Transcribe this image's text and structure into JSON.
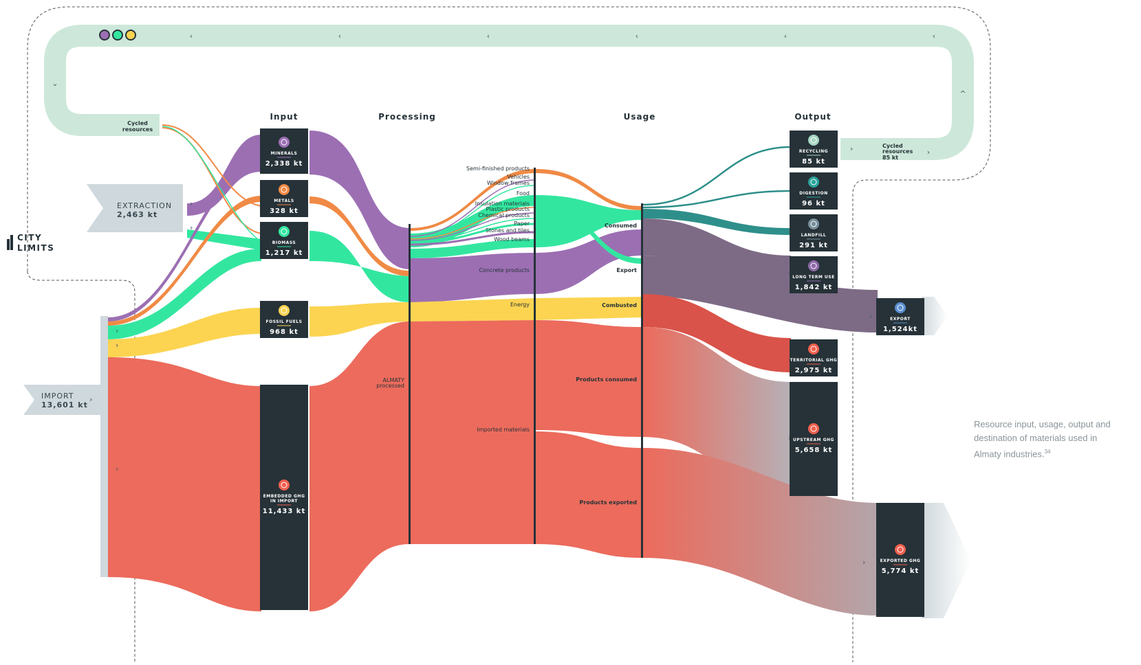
{
  "headers": {
    "input": "Input",
    "processing": "Processing",
    "usage": "Usage",
    "output": "Output"
  },
  "logo": {
    "line1": "CITY",
    "line2": "LIMITS"
  },
  "cycle": {
    "left_label": "Cycled\nresources",
    "right_label": "Cycled\nresources",
    "right_value": "85 kt"
  },
  "sources": {
    "extraction": {
      "label": "EXTRACTION",
      "value": "2,463 kt"
    },
    "import": {
      "label": "IMPORT",
      "value": "13,601 kt"
    }
  },
  "input_nodes": [
    {
      "label": "MINERALS",
      "value": "2,338 kt",
      "icon": "minerals-icon",
      "color": "#9c6fb3"
    },
    {
      "label": "METALS",
      "value": "328 kt",
      "icon": "metals-icon",
      "color": "#f08a45"
    },
    {
      "label": "BIOMASS",
      "value": "1,217 kt",
      "icon": "biomass-icon",
      "color": "#33e6a0"
    },
    {
      "label": "FOSSIL FUELS",
      "value": "968 kt",
      "icon": "fossil-fuels-icon",
      "color": "#fcd451"
    },
    {
      "label": "EMBEDDED GHG\nIN IMPORT",
      "value": "11,433 kt",
      "icon": "ghg-icon",
      "color": "#f0604e"
    }
  ],
  "processing_labels": [
    "Semi-finished products",
    "Vehicles",
    "Window frames",
    "Food",
    "Insulation materials",
    "Plastic products",
    "Chemical products",
    "Paper",
    "Stones and tiles",
    "Wood beams",
    "Concrete products",
    "Energy",
    "Imported materials"
  ],
  "almaty_label": "ALMATY\nprocessed",
  "usage_labels": [
    "Consumed",
    "Export",
    "Combusted",
    "Products consumed",
    "Products exported"
  ],
  "output_nodes": [
    {
      "label": "RECYCLING",
      "value": "85 kt",
      "icon": "recycling-icon",
      "color": "#a5d6c2"
    },
    {
      "label": "DIGESTION",
      "value": "96 kt",
      "icon": "digestion-icon",
      "color": "#2aa39b"
    },
    {
      "label": "LANDFILL",
      "value": "291 kt",
      "icon": "landfill-icon",
      "color": "#78909c"
    },
    {
      "label": "LONG TERM USE",
      "value": "1,842 kt",
      "icon": "long-term-use-icon",
      "color": "#8e6aa8"
    },
    {
      "label": "EXPORT",
      "value": "1,524kt",
      "icon": "export-icon",
      "color": "#5a8fd0"
    },
    {
      "label": "TERRITORIAL GHG",
      "value": "2,975 kt",
      "icon": "ghg-icon",
      "color": "#f0604e"
    },
    {
      "label": "UPSTREAM GHG",
      "value": "5,658 kt",
      "icon": "ghg-icon",
      "color": "#f0604e"
    },
    {
      "label": "EXPORTED GHG",
      "value": "5,774 kt",
      "icon": "ghg-icon",
      "color": "#f0604e"
    }
  ],
  "caption": {
    "text": "Resource input, usage, output and destination of materials used in Almaty industries.",
    "ref": "34"
  },
  "colors": {
    "minerals": "#9c6fb3",
    "metals": "#f08a45",
    "biomass": "#33e6a0",
    "fossil": "#fcd451",
    "ghg": "#ec6b5c",
    "cycle": "#cde8da",
    "node": "#263238",
    "export_flow": "#7d6b86",
    "teal": "#2e8f8a",
    "source_tag": "#cfd8dc"
  }
}
